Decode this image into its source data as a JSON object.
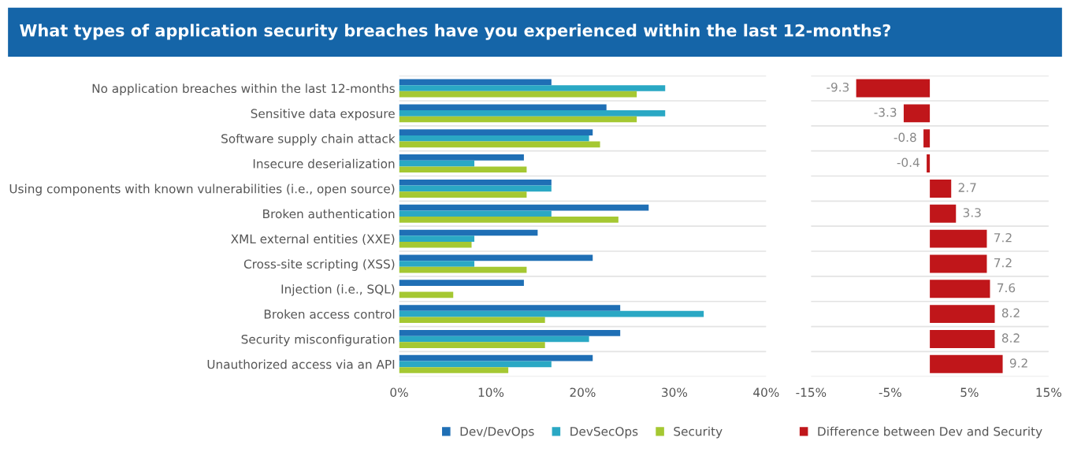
{
  "chart_data": [
    {
      "type": "bar",
      "orientation": "horizontal",
      "title": "What types of application security breaches have you experienced within the last 12-months?",
      "categories": [
        "No application breaches within the last 12-months",
        "Sensitive data exposure",
        "Software supply chain attack",
        "Insecure deserialization",
        "Using components with known vulnerabilities (i.e., open source)",
        "Broken authentication",
        "XML external entities (XXE)",
        "Cross-site scripting (XSS)",
        "Injection (i.e., SQL)",
        "Broken access control",
        "Security misconfiguration",
        "Unauthorized access via an API"
      ],
      "series": [
        {
          "name": "Dev/DevOps",
          "color": "#1f6fb5",
          "values": [
            16.6,
            22.6,
            21.1,
            13.6,
            16.6,
            27.2,
            15.1,
            21.1,
            13.6,
            24.1,
            24.1,
            21.1
          ]
        },
        {
          "name": "DevSecOps",
          "color": "#2aa8c4",
          "values": [
            29.0,
            29.0,
            20.7,
            8.2,
            16.6,
            16.6,
            8.2,
            8.2,
            0,
            33.2,
            20.7,
            16.6
          ]
        },
        {
          "name": "Security",
          "color": "#a5c832",
          "values": [
            25.9,
            25.9,
            21.9,
            13.9,
            13.9,
            23.9,
            7.9,
            13.9,
            5.9,
            15.9,
            15.9,
            11.9
          ]
        }
      ],
      "xlim": [
        0,
        40
      ],
      "xticks": [
        {
          "value": 0,
          "label": "0%"
        },
        {
          "value": 10,
          "label": "10%"
        },
        {
          "value": 20,
          "label": "20%"
        },
        {
          "value": 30,
          "label": "30%"
        },
        {
          "value": 40,
          "label": "40%"
        }
      ],
      "grid": "y",
      "legend": "bottom"
    },
    {
      "type": "bar",
      "orientation": "horizontal",
      "categories": [
        null,
        null,
        null,
        null,
        null,
        null,
        null,
        null,
        null,
        null,
        null,
        null
      ],
      "series": [
        {
          "name": "Difference between Dev and Security",
          "color": "#c0161a",
          "values": [
            -9.3,
            -3.3,
            -0.8,
            -0.4,
            2.7,
            3.3,
            7.2,
            7.2,
            7.6,
            8.2,
            8.2,
            9.2
          ]
        }
      ],
      "xlim": [
        -15,
        15
      ],
      "xticks": [
        {
          "value": -15,
          "label": "-15%"
        },
        {
          "value": -5,
          "label": "-5%"
        },
        {
          "value": 5,
          "label": "5%"
        },
        {
          "value": 15,
          "label": "15%"
        }
      ],
      "data_labels": true,
      "tick_labels": "x",
      "grid": "y",
      "legend": "bottom right"
    }
  ]
}
